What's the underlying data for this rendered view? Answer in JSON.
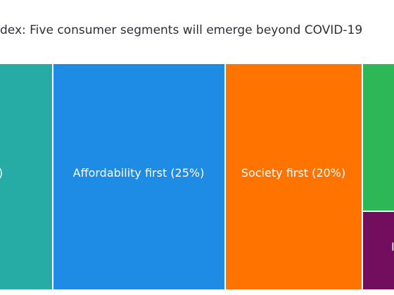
{
  "chart_data": {
    "type": "treemap",
    "title": "dex: Five consumer segments will emerge beyond COVID-19",
    "unit": "%",
    "segments": [
      {
        "label": ")",
        "color": "#27aca5"
      },
      {
        "label": "Affordability first (25%)",
        "value": 25,
        "color": "#1e8be4"
      },
      {
        "label": "Society first (20%)",
        "value": 20,
        "color": "#ff7300"
      },
      {
        "label": "",
        "color": "#2db757"
      },
      {
        "label": "I",
        "color": "#730d5e"
      }
    ]
  }
}
